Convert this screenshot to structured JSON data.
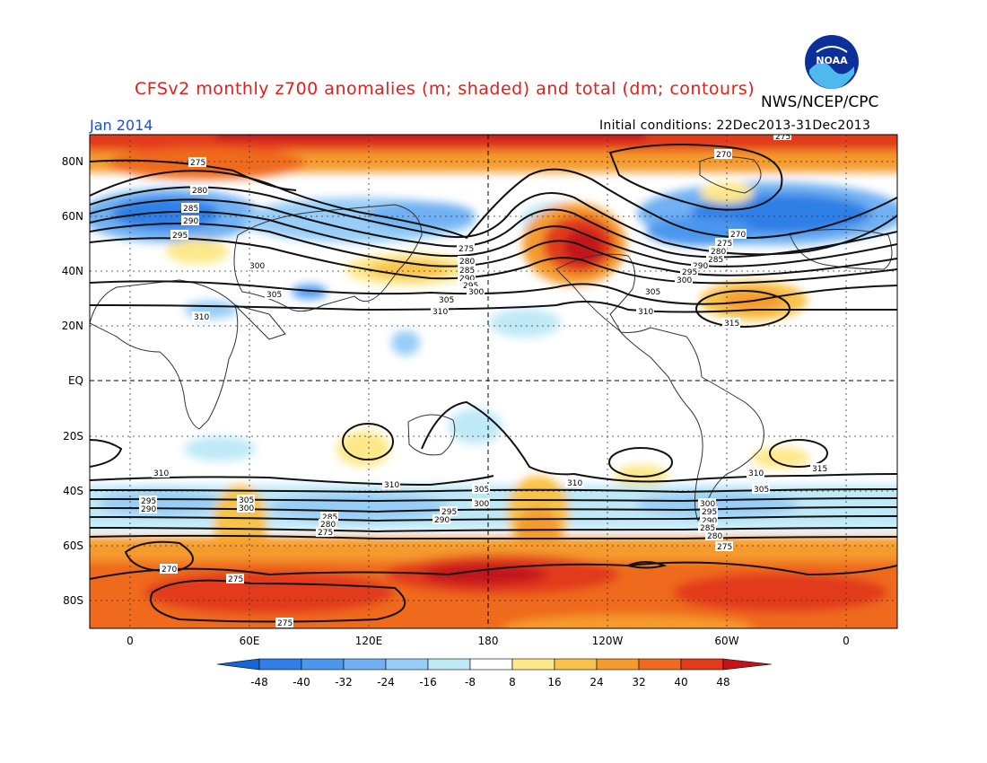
{
  "title": "CFSv2 monthly z700 anomalies (m; shaded) and total (dm; contours)",
  "credit": "NWS/NCEP/CPC",
  "month": "Jan 2014",
  "initial_conditions": "Initial conditions: 22Dec2013-31Dec2013",
  "logo": {
    "name": "noaa-logo",
    "text": "NOAA"
  },
  "map": {
    "lat_labels": [
      "80N",
      "60N",
      "40N",
      "20N",
      "EQ",
      "20S",
      "40S",
      "60S",
      "80S"
    ],
    "lon_labels": [
      "0",
      "60E",
      "120E",
      "180",
      "120W",
      "60W",
      "0"
    ],
    "contour_labels": [
      "275",
      "280",
      "285",
      "290",
      "295",
      "300",
      "305",
      "310",
      "315",
      "270"
    ]
  },
  "colorbar": {
    "labels": [
      "-48",
      "-40",
      "-32",
      "-24",
      "-16",
      "-8",
      "8",
      "16",
      "24",
      "32",
      "40",
      "48"
    ],
    "colors": [
      "#1565d8",
      "#2f7fe6",
      "#4c97ee",
      "#6fb0f3",
      "#97cdf7",
      "#bfe9f7",
      "#ffffff",
      "#fde88a",
      "#f9c24a",
      "#f59b2e",
      "#ef6a1e",
      "#e23a1b",
      "#c2131a"
    ]
  }
}
